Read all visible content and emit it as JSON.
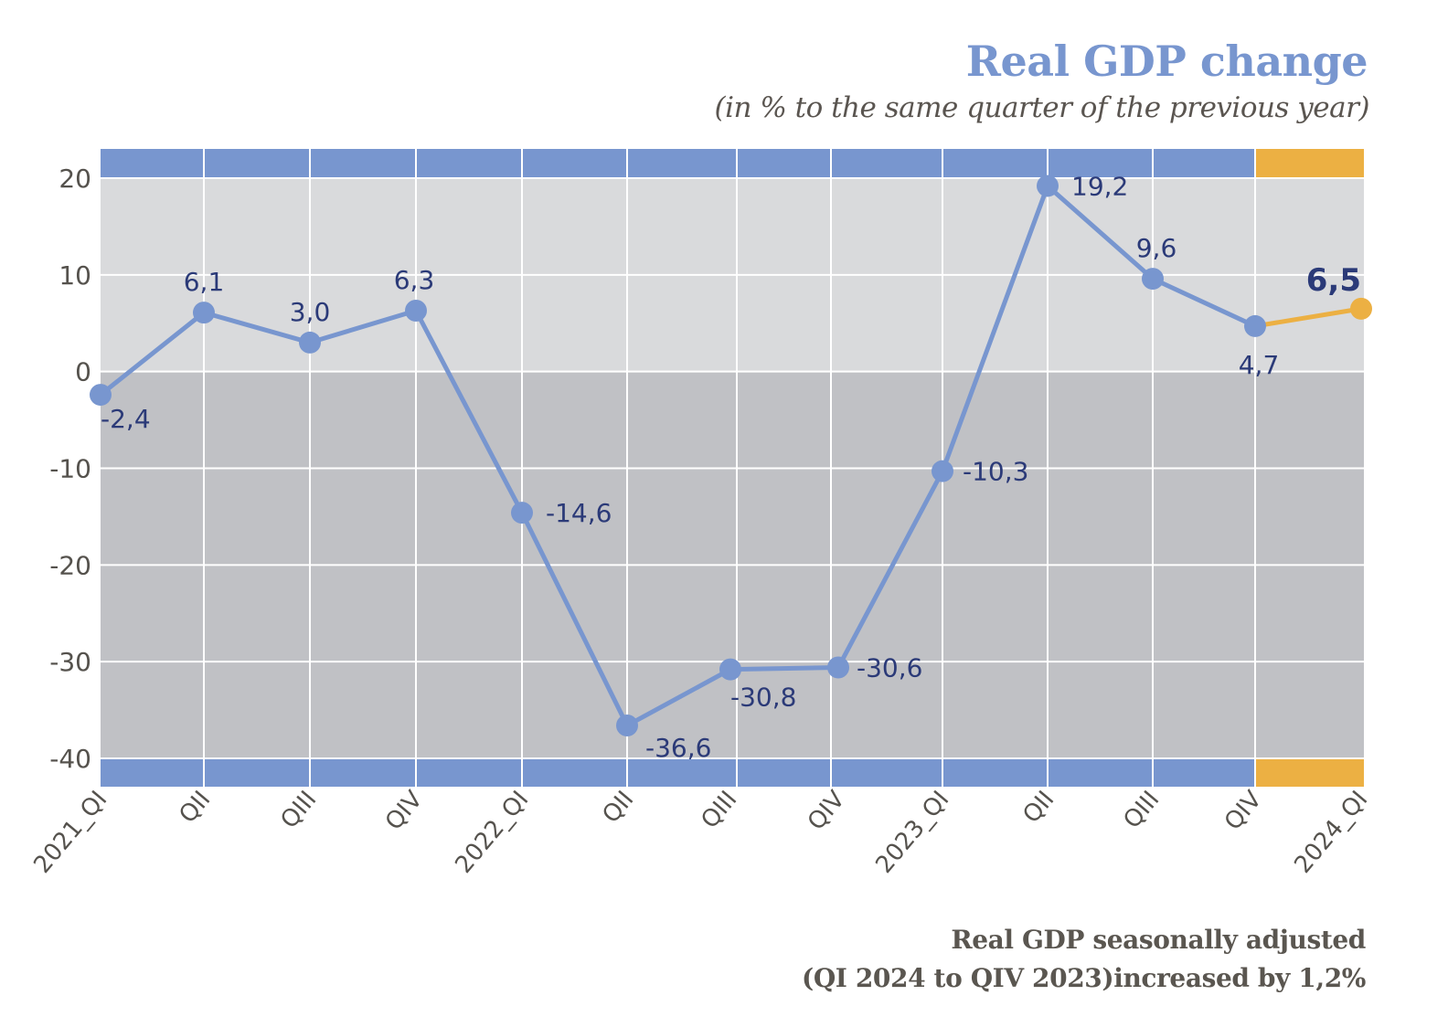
{
  "chart_data": {
    "type": "line",
    "title": "Real GDP change",
    "subtitle": "(in % to the same quarter of the previous year)",
    "xlabel": "",
    "ylabel": "",
    "ylim": [
      -40,
      20
    ],
    "yticks": [
      20,
      10,
      0,
      -10,
      -20,
      -30,
      -40
    ],
    "ytick_labels": [
      "20",
      "10",
      "0",
      "-10",
      "-20",
      "-30",
      "-40"
    ],
    "categories": [
      "2021_QI",
      "QII",
      "QIII",
      "QIV",
      "2022_QI",
      "QII",
      "QIII",
      "QIV",
      "2023_QI",
      "QII",
      "QIII",
      "QIV",
      "2024_QI"
    ],
    "series": [
      {
        "name": "Real GDP change",
        "values": [
          -2.4,
          6.1,
          3.0,
          6.3,
          -14.6,
          -36.6,
          -30.8,
          -30.6,
          -10.3,
          19.2,
          9.6,
          4.7,
          6.5
        ],
        "labels": [
          "-2,4",
          "6,1",
          "3,0",
          "6,3",
          "-14,6",
          "-36,6",
          "-30,8",
          "-30,6",
          "-10,3",
          "19,2",
          "9,6",
          "4,7",
          "6,5"
        ],
        "highlight_last": true
      }
    ],
    "grid": true,
    "colors": {
      "line": "#7896cf",
      "highlight": "#ecb043",
      "band": "#7896cf",
      "positive_bg": "#d9dadc",
      "negative_bg": "#c0c1c5",
      "label": "#2b3a78",
      "axis_text": "#55524d"
    },
    "footnote": [
      "Real GDP seasonally adjusted",
      "(QI 2024 to QIV 2023)increased by 1,2%"
    ]
  }
}
